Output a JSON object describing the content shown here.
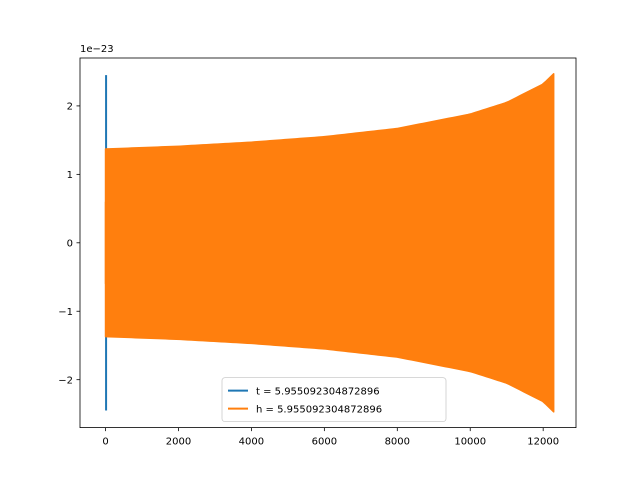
{
  "chart_data": {
    "type": "line",
    "title": "",
    "xlabel": "",
    "ylabel": "",
    "y_offset_text": "1e−23",
    "xlim": [
      -700,
      12900
    ],
    "ylim": [
      -2.7,
      2.7
    ],
    "x_ticks": [
      {
        "value": 0,
        "label": "0"
      },
      {
        "value": 2000,
        "label": "2000"
      },
      {
        "value": 4000,
        "label": "4000"
      },
      {
        "value": 6000,
        "label": "6000"
      },
      {
        "value": 8000,
        "label": "8000"
      },
      {
        "value": 10000,
        "label": "10000"
      },
      {
        "value": 12000,
        "label": "12000"
      }
    ],
    "y_ticks": [
      {
        "value": -2,
        "label": "−2"
      },
      {
        "value": -1,
        "label": "−1"
      },
      {
        "value": 0,
        "label": "0"
      },
      {
        "value": 1,
        "label": "1"
      },
      {
        "value": 2,
        "label": "2"
      }
    ],
    "grid": false,
    "legend_position": "lower-center",
    "series": [
      {
        "name": "t = 5.955092304872896",
        "color": "#1f77b4",
        "x_range": [
          0,
          30
        ],
        "envelope_start_amplitude": 2.45,
        "envelope_end_amplitude": 2.45
      },
      {
        "name": "h = 5.955092304872896",
        "color": "#ff7f0e",
        "x_range": [
          0,
          12288
        ],
        "envelope_start_amplitude": 1.37,
        "envelope_end_amplitude": 2.47,
        "envelope_samples": [
          {
            "x": 0,
            "amplitude": 1.37
          },
          {
            "x": 2000,
            "amplitude": 1.41
          },
          {
            "x": 4000,
            "amplitude": 1.47
          },
          {
            "x": 6000,
            "amplitude": 1.55
          },
          {
            "x": 8000,
            "amplitude": 1.67
          },
          {
            "x": 10000,
            "amplitude": 1.88
          },
          {
            "x": 11000,
            "amplitude": 2.05
          },
          {
            "x": 12000,
            "amplitude": 2.32
          },
          {
            "x": 12288,
            "amplitude": 2.47
          }
        ]
      }
    ]
  }
}
